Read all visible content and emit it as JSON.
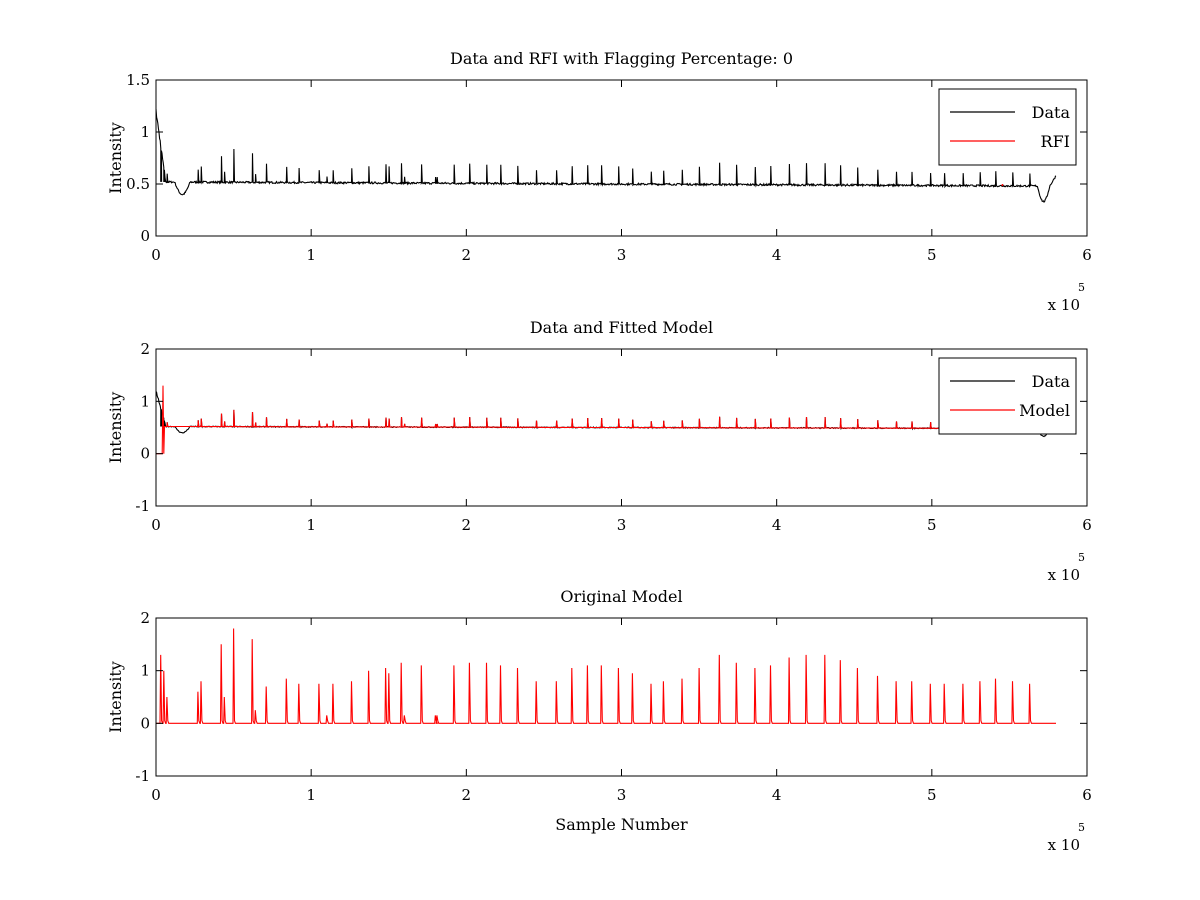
{
  "colors": {
    "data": "#000000",
    "rfi": "#ff0000",
    "model": "#ff0000",
    "axis": "#000000",
    "background": "#ffffff"
  },
  "chart_data": [
    {
      "type": "line",
      "title": "Data and RFI with Flagging Percentage: 0",
      "xlabel": "",
      "ylabel": "Intensity",
      "xlim": [
        0,
        6
      ],
      "ylim": [
        0,
        1.5
      ],
      "x_multiplier": "x 10",
      "x_multiplier_exponent": "5",
      "xticks": [
        "0",
        "1",
        "2",
        "3",
        "4",
        "5",
        "6"
      ],
      "yticks": [
        "0",
        "0.5",
        "1",
        "1.5"
      ],
      "legend_position": "top-right",
      "legend": [
        "Data",
        "RFI"
      ],
      "series": [
        {
          "name": "Data",
          "color": "#000000",
          "kind": "signal",
          "baseline_start": 0.52,
          "baseline_end": 0.48,
          "trace_end_x": 5.8
        },
        {
          "name": "RFI",
          "color": "#ff0000",
          "kind": "rfi_points",
          "x": [
            5.45
          ],
          "y": [
            0.49
          ]
        }
      ]
    },
    {
      "type": "line",
      "title": "Data and Fitted Model",
      "xlabel": "",
      "ylabel": "Intensity",
      "xlim": [
        0,
        6
      ],
      "ylim": [
        -1,
        2
      ],
      "x_multiplier": "x 10",
      "x_multiplier_exponent": "5",
      "xticks": [
        "0",
        "1",
        "2",
        "3",
        "4",
        "5",
        "6"
      ],
      "yticks": [
        "-1",
        "0",
        "1",
        "2"
      ],
      "legend_position": "top-right",
      "legend": [
        "Data",
        "Model"
      ],
      "series": [
        {
          "name": "Data",
          "color": "#000000",
          "kind": "signal",
          "baseline_start": 0.52,
          "baseline_end": 0.48,
          "trace_end_x": 5.8
        },
        {
          "name": "Model",
          "color": "#ff0000",
          "kind": "model",
          "baseline_start": 0.52,
          "baseline_end": 0.48,
          "trace_end_x": 5.8
        }
      ]
    },
    {
      "type": "line",
      "title": "Original Model",
      "xlabel": "Sample Number",
      "ylabel": "Intensity",
      "xlim": [
        0,
        6
      ],
      "ylim": [
        -1,
        2
      ],
      "x_multiplier": "x 10",
      "x_multiplier_exponent": "5",
      "xticks": [
        "0",
        "1",
        "2",
        "3",
        "4",
        "5",
        "6"
      ],
      "yticks": [
        "-1",
        "0",
        "1",
        "2"
      ],
      "legend_position": "none",
      "legend": [],
      "series": [
        {
          "name": "",
          "color": "#ff0000",
          "kind": "original_model",
          "baseline": 0,
          "trace_end_x": 5.8
        }
      ]
    }
  ],
  "peaks": {
    "x": [
      0.03,
      0.05,
      0.07,
      0.27,
      0.29,
      0.42,
      0.44,
      0.5,
      0.62,
      0.64,
      0.71,
      0.84,
      0.92,
      1.05,
      1.1,
      1.14,
      1.26,
      1.37,
      1.48,
      1.5,
      1.58,
      1.6,
      1.71,
      1.8,
      1.81,
      1.92,
      2.02,
      2.13,
      2.22,
      2.33,
      2.45,
      2.58,
      2.68,
      2.78,
      2.87,
      2.98,
      3.07,
      3.19,
      3.27,
      3.39,
      3.5,
      3.63,
      3.74,
      3.86,
      3.96,
      4.08,
      4.19,
      4.31,
      4.41,
      4.52,
      4.65,
      4.77,
      4.87,
      4.99,
      5.08,
      5.2,
      5.31,
      5.41,
      5.52,
      5.63
    ],
    "original_heights": [
      1.3,
      1.0,
      0.5,
      0.6,
      0.8,
      1.5,
      0.5,
      1.8,
      1.6,
      0.25,
      0.7,
      0.85,
      0.75,
      0.75,
      0.15,
      0.75,
      0.8,
      1.0,
      1.05,
      0.95,
      1.15,
      0.15,
      1.1,
      0.15,
      0.15,
      1.1,
      1.15,
      1.15,
      1.1,
      1.05,
      0.8,
      0.8,
      1.05,
      1.1,
      1.1,
      1.05,
      0.95,
      0.75,
      0.8,
      0.85,
      1.05,
      1.3,
      1.15,
      1.05,
      1.1,
      1.25,
      1.3,
      1.3,
      1.2,
      1.05,
      0.9,
      0.8,
      0.8,
      0.75,
      0.75,
      0.75,
      0.8,
      0.85,
      0.8,
      0.75
    ],
    "data_heights": [
      0.15,
      0.12,
      0.08,
      0.12,
      0.15,
      0.25,
      0.1,
      0.32,
      0.28,
      0.08,
      0.18,
      0.15,
      0.14,
      0.12,
      0.06,
      0.12,
      0.14,
      0.16,
      0.18,
      0.16,
      0.19,
      0.06,
      0.18,
      0.06,
      0.06,
      0.18,
      0.19,
      0.18,
      0.18,
      0.17,
      0.13,
      0.13,
      0.17,
      0.18,
      0.18,
      0.17,
      0.15,
      0.12,
      0.13,
      0.14,
      0.17,
      0.21,
      0.19,
      0.17,
      0.18,
      0.2,
      0.21,
      0.21,
      0.19,
      0.17,
      0.15,
      0.13,
      0.13,
      0.12,
      0.12,
      0.12,
      0.13,
      0.14,
      0.13,
      0.12
    ]
  }
}
